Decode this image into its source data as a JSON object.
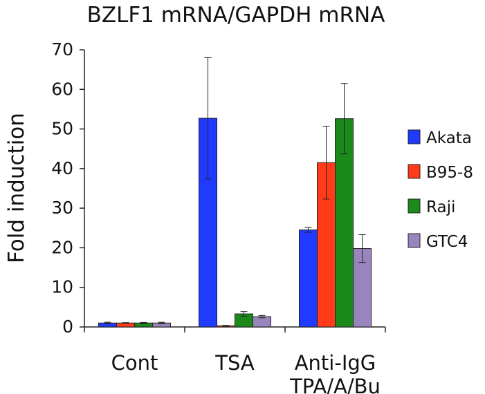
{
  "chart_data": {
    "type": "bar",
    "title": "BZLF1 mRNA/GAPDH mRNA",
    "ylabel": "Fold induction",
    "xlabel": "",
    "ylim": [
      0,
      70
    ],
    "yticks": [
      0,
      10,
      20,
      30,
      40,
      50,
      60,
      70
    ],
    "categories": [
      "Cont",
      "TSA",
      "Anti-IgG\nTPA/A/Bu"
    ],
    "category_lines": [
      [
        "Cont"
      ],
      [
        "TSA"
      ],
      [
        "Anti-IgG",
        "TPA/A/Bu"
      ]
    ],
    "grid": false,
    "legend_position": "right",
    "series": [
      {
        "name": "Akata",
        "color": "#1f3bff",
        "values": [
          1.0,
          52.7,
          24.5
        ],
        "error": [
          0.2,
          15.3,
          0.6
        ]
      },
      {
        "name": "B95-8",
        "color": "#ff3b1a",
        "values": [
          1.0,
          0.3,
          41.5
        ],
        "error": [
          0.1,
          0.1,
          9.2
        ]
      },
      {
        "name": "Raji",
        "color": "#1b8a1b",
        "values": [
          1.0,
          3.3,
          52.6
        ],
        "error": [
          0.15,
          0.6,
          8.9
        ]
      },
      {
        "name": "GTC4",
        "color": "#9a84bd",
        "values": [
          1.0,
          2.6,
          19.8
        ],
        "error": [
          0.2,
          0.3,
          3.5
        ]
      }
    ]
  }
}
